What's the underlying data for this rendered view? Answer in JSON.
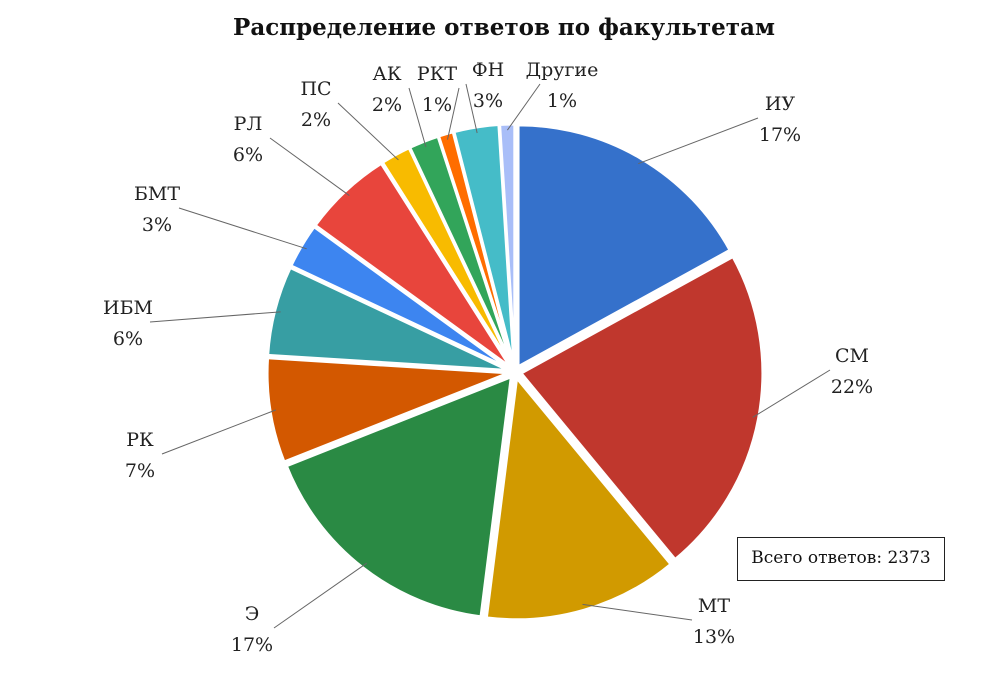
{
  "chart_data": {
    "type": "pie",
    "title": "Распределение ответов по факультетам",
    "total_label": "Всего ответов: 2373",
    "total": 2373,
    "legend": "none (data labels with leader lines)",
    "start_angle_deg": 0,
    "direction": "clockwise",
    "slices": [
      {
        "label": "ИУ",
        "value": 17,
        "pct": "17%",
        "color": "#3571CB"
      },
      {
        "label": "СМ",
        "value": 22,
        "pct": "22%",
        "color": "#C0372D"
      },
      {
        "label": "МТ",
        "value": 13,
        "pct": "13%",
        "color": "#D19A00"
      },
      {
        "label": "Э",
        "value": 17,
        "pct": "17%",
        "color": "#2A8A44"
      },
      {
        "label": "РК",
        "value": 7,
        "pct": "7%",
        "color": "#D35800"
      },
      {
        "label": "ИБМ",
        "value": 6,
        "pct": "6%",
        "color": "#379EA3"
      },
      {
        "label": "БМТ",
        "value": 3,
        "pct": "3%",
        "color": "#3D85F0"
      },
      {
        "label": "РЛ",
        "value": 6,
        "pct": "6%",
        "color": "#E8453C"
      },
      {
        "label": "ПС",
        "value": 2,
        "pct": "2%",
        "color": "#F8BB00"
      },
      {
        "label": "АК",
        "value": 2,
        "pct": "2%",
        "color": "#32A55A"
      },
      {
        "label": "РКТ",
        "value": 1,
        "pct": "1%",
        "color": "#FF6D00"
      },
      {
        "label": "ФН",
        "value": 3,
        "pct": "3%",
        "color": "#45BCC8"
      },
      {
        "label": "Другие",
        "value": 1,
        "pct": "1%",
        "color": "#A9BEF8"
      }
    ]
  }
}
